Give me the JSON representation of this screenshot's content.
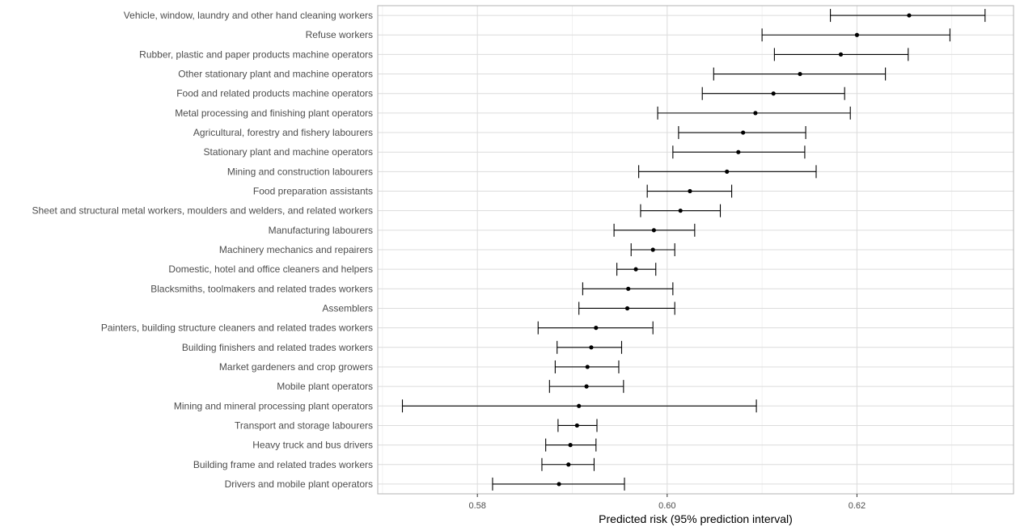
{
  "chart_data": {
    "type": "scatter",
    "subtype": "point-range",
    "xlabel": "Predicted risk (95% prediction interval)",
    "ylabel": "",
    "title": "",
    "xlim": [
      0.5695,
      0.6365
    ],
    "x_ticks": [
      0.58,
      0.6,
      0.62
    ],
    "x_tick_labels": [
      "0.58",
      "0.60",
      "0.62"
    ],
    "grid": true,
    "legend": "none",
    "rows": [
      {
        "label": "Vehicle, window, laundry and other hand cleaning workers",
        "estimate": 0.6255,
        "lower": 0.6172,
        "upper": 0.6335
      },
      {
        "label": "Refuse workers",
        "estimate": 0.62,
        "lower": 0.61,
        "upper": 0.6298
      },
      {
        "label": "Rubber, plastic and paper products machine operators",
        "estimate": 0.6183,
        "lower": 0.6113,
        "upper": 0.6254
      },
      {
        "label": "Other stationary plant and machine operators",
        "estimate": 0.614,
        "lower": 0.6049,
        "upper": 0.623
      },
      {
        "label": "Food and related products machine operators",
        "estimate": 0.6112,
        "lower": 0.6037,
        "upper": 0.6187
      },
      {
        "label": "Metal processing and finishing plant operators",
        "estimate": 0.6093,
        "lower": 0.599,
        "upper": 0.6193
      },
      {
        "label": "Agricultural, forestry and fishery labourers",
        "estimate": 0.608,
        "lower": 0.6012,
        "upper": 0.6146
      },
      {
        "label": "Stationary plant and machine operators",
        "estimate": 0.6075,
        "lower": 0.6006,
        "upper": 0.6145
      },
      {
        "label": "Mining and construction labourers",
        "estimate": 0.6063,
        "lower": 0.597,
        "upper": 0.6157
      },
      {
        "label": "Food preparation assistants",
        "estimate": 0.6024,
        "lower": 0.5979,
        "upper": 0.6068
      },
      {
        "label": "Sheet and structural metal workers, moulders and welders, and related workers",
        "estimate": 0.6014,
        "lower": 0.5972,
        "upper": 0.6056
      },
      {
        "label": "Manufacturing labourers",
        "estimate": 0.5986,
        "lower": 0.5944,
        "upper": 0.6029
      },
      {
        "label": "Machinery mechanics and repairers",
        "estimate": 0.5985,
        "lower": 0.5962,
        "upper": 0.6008
      },
      {
        "label": "Domestic, hotel and office cleaners and helpers",
        "estimate": 0.5967,
        "lower": 0.5947,
        "upper": 0.5988
      },
      {
        "label": "Blacksmiths, toolmakers and related trades workers",
        "estimate": 0.5959,
        "lower": 0.5911,
        "upper": 0.6006
      },
      {
        "label": "Assemblers",
        "estimate": 0.5958,
        "lower": 0.5907,
        "upper": 0.6008
      },
      {
        "label": "Painters, building structure cleaners and related trades workers",
        "estimate": 0.5925,
        "lower": 0.5864,
        "upper": 0.5985
      },
      {
        "label": "Building finishers and related trades workers",
        "estimate": 0.592,
        "lower": 0.5884,
        "upper": 0.5952
      },
      {
        "label": "Market gardeners and crop growers",
        "estimate": 0.5916,
        "lower": 0.5882,
        "upper": 0.5949
      },
      {
        "label": "Mobile plant operators",
        "estimate": 0.5915,
        "lower": 0.5876,
        "upper": 0.5954
      },
      {
        "label": "Mining and mineral processing plant operators",
        "estimate": 0.5907,
        "lower": 0.5721,
        "upper": 0.6094
      },
      {
        "label": "Transport and storage labourers",
        "estimate": 0.5905,
        "lower": 0.5885,
        "upper": 0.5926
      },
      {
        "label": "Heavy truck and bus drivers",
        "estimate": 0.5898,
        "lower": 0.5872,
        "upper": 0.5925
      },
      {
        "label": "Building frame and related trades workers",
        "estimate": 0.5896,
        "lower": 0.5868,
        "upper": 0.5923
      },
      {
        "label": "Drivers and mobile plant operators",
        "estimate": 0.5886,
        "lower": 0.5816,
        "upper": 0.5955
      }
    ]
  }
}
